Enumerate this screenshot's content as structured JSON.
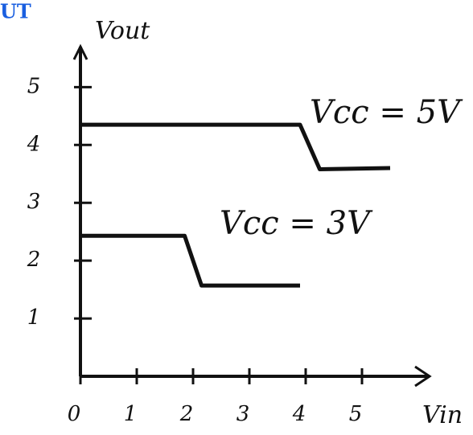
{
  "chart_data": {
    "type": "line",
    "title": "UT",
    "ylabel": "Vout",
    "xlabel": "Vin",
    "xlim": [
      0,
      6.2
    ],
    "ylim": [
      0,
      5.7
    ],
    "xticks": [
      0,
      1,
      2,
      3,
      4,
      5
    ],
    "yticks": [
      1,
      2,
      3,
      4,
      5
    ],
    "series": [
      {
        "name": "Vcc = 5V",
        "color": "#111111",
        "x": [
          0,
          3.9,
          4.25,
          5.5
        ],
        "values": [
          4.35,
          4.35,
          3.58,
          3.6
        ]
      },
      {
        "name": "Vcc = 3V",
        "color": "#111111",
        "x": [
          0,
          1.85,
          2.15,
          3.9
        ],
        "values": [
          2.43,
          2.43,
          1.57,
          1.57
        ]
      }
    ]
  }
}
